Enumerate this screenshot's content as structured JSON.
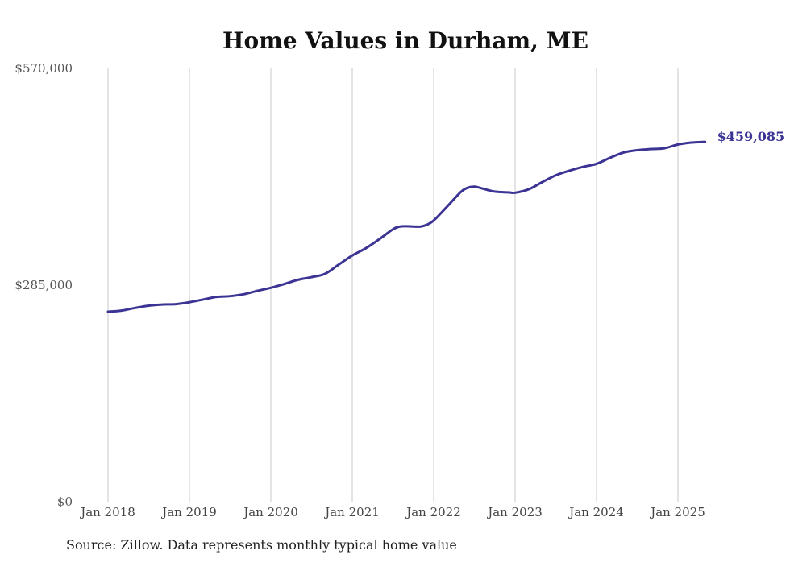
{
  "chart_data": {
    "type": "line",
    "title": "Home Values in Durham, ME",
    "xlabel": "",
    "ylabel": "",
    "ylim": [
      0,
      570000
    ],
    "x_range": [
      "2018-01",
      "2025-12"
    ],
    "y_ticks": [
      {
        "value": 0,
        "label": "$0"
      },
      {
        "value": 285000,
        "label": "$285,000"
      },
      {
        "value": 570000,
        "label": "$570,000"
      }
    ],
    "x_ticks": [
      {
        "date": "2018-01",
        "label": "Jan 2018"
      },
      {
        "date": "2019-01",
        "label": "Jan 2019"
      },
      {
        "date": "2020-01",
        "label": "Jan 2020"
      },
      {
        "date": "2021-01",
        "label": "Jan 2021"
      },
      {
        "date": "2022-01",
        "label": "Jan 2022"
      },
      {
        "date": "2023-01",
        "label": "Jan 2023"
      },
      {
        "date": "2024-01",
        "label": "Jan 2024"
      },
      {
        "date": "2025-01",
        "label": "Jan 2025"
      }
    ],
    "grid": "vertical lines at x ticks",
    "line_color": "#3b3494",
    "series": [
      {
        "points": [
          [
            "2018-01",
            250000
          ],
          [
            "2018-03",
            251500
          ],
          [
            "2018-05",
            255000
          ],
          [
            "2018-07",
            258000
          ],
          [
            "2018-09",
            259500
          ],
          [
            "2018-11",
            260000
          ],
          [
            "2019-01",
            262500
          ],
          [
            "2019-03",
            266000
          ],
          [
            "2019-05",
            269500
          ],
          [
            "2019-07",
            270500
          ],
          [
            "2019-09",
            273000
          ],
          [
            "2019-11",
            277500
          ],
          [
            "2020-01",
            281500
          ],
          [
            "2020-03",
            286500
          ],
          [
            "2020-05",
            292000
          ],
          [
            "2020-07",
            295500
          ],
          [
            "2020-09",
            300000
          ],
          [
            "2020-11",
            312000
          ],
          [
            "2021-01",
            324000
          ],
          [
            "2021-03",
            333500
          ],
          [
            "2021-05",
            345500
          ],
          [
            "2021-07",
            358500
          ],
          [
            "2021-08",
            362000
          ],
          [
            "2021-09",
            362500
          ],
          [
            "2021-11",
            362000
          ],
          [
            "2021-12",
            364500
          ],
          [
            "2022-01",
            370000
          ],
          [
            "2022-03",
            388500
          ],
          [
            "2022-05",
            407500
          ],
          [
            "2022-06",
            413000
          ],
          [
            "2022-07",
            414500
          ],
          [
            "2022-08",
            412500
          ],
          [
            "2022-10",
            408000
          ],
          [
            "2022-12",
            407000
          ],
          [
            "2023-01",
            406500
          ],
          [
            "2023-03",
            411000
          ],
          [
            "2023-05",
            420500
          ],
          [
            "2023-07",
            429500
          ],
          [
            "2023-09",
            435500
          ],
          [
            "2023-11",
            440500
          ],
          [
            "2024-01",
            444500
          ],
          [
            "2024-03",
            452500
          ],
          [
            "2024-05",
            459500
          ],
          [
            "2024-07",
            462500
          ],
          [
            "2024-09",
            464000
          ],
          [
            "2024-11",
            465000
          ],
          [
            "2025-01",
            470000
          ],
          [
            "2025-03",
            472500
          ],
          [
            "2025-05",
            473500
          ]
        ]
      }
    ],
    "end_label": {
      "text": "$459,085",
      "color": "#3b3494"
    },
    "source": "Source: Zillow. Data represents monthly typical home value"
  }
}
